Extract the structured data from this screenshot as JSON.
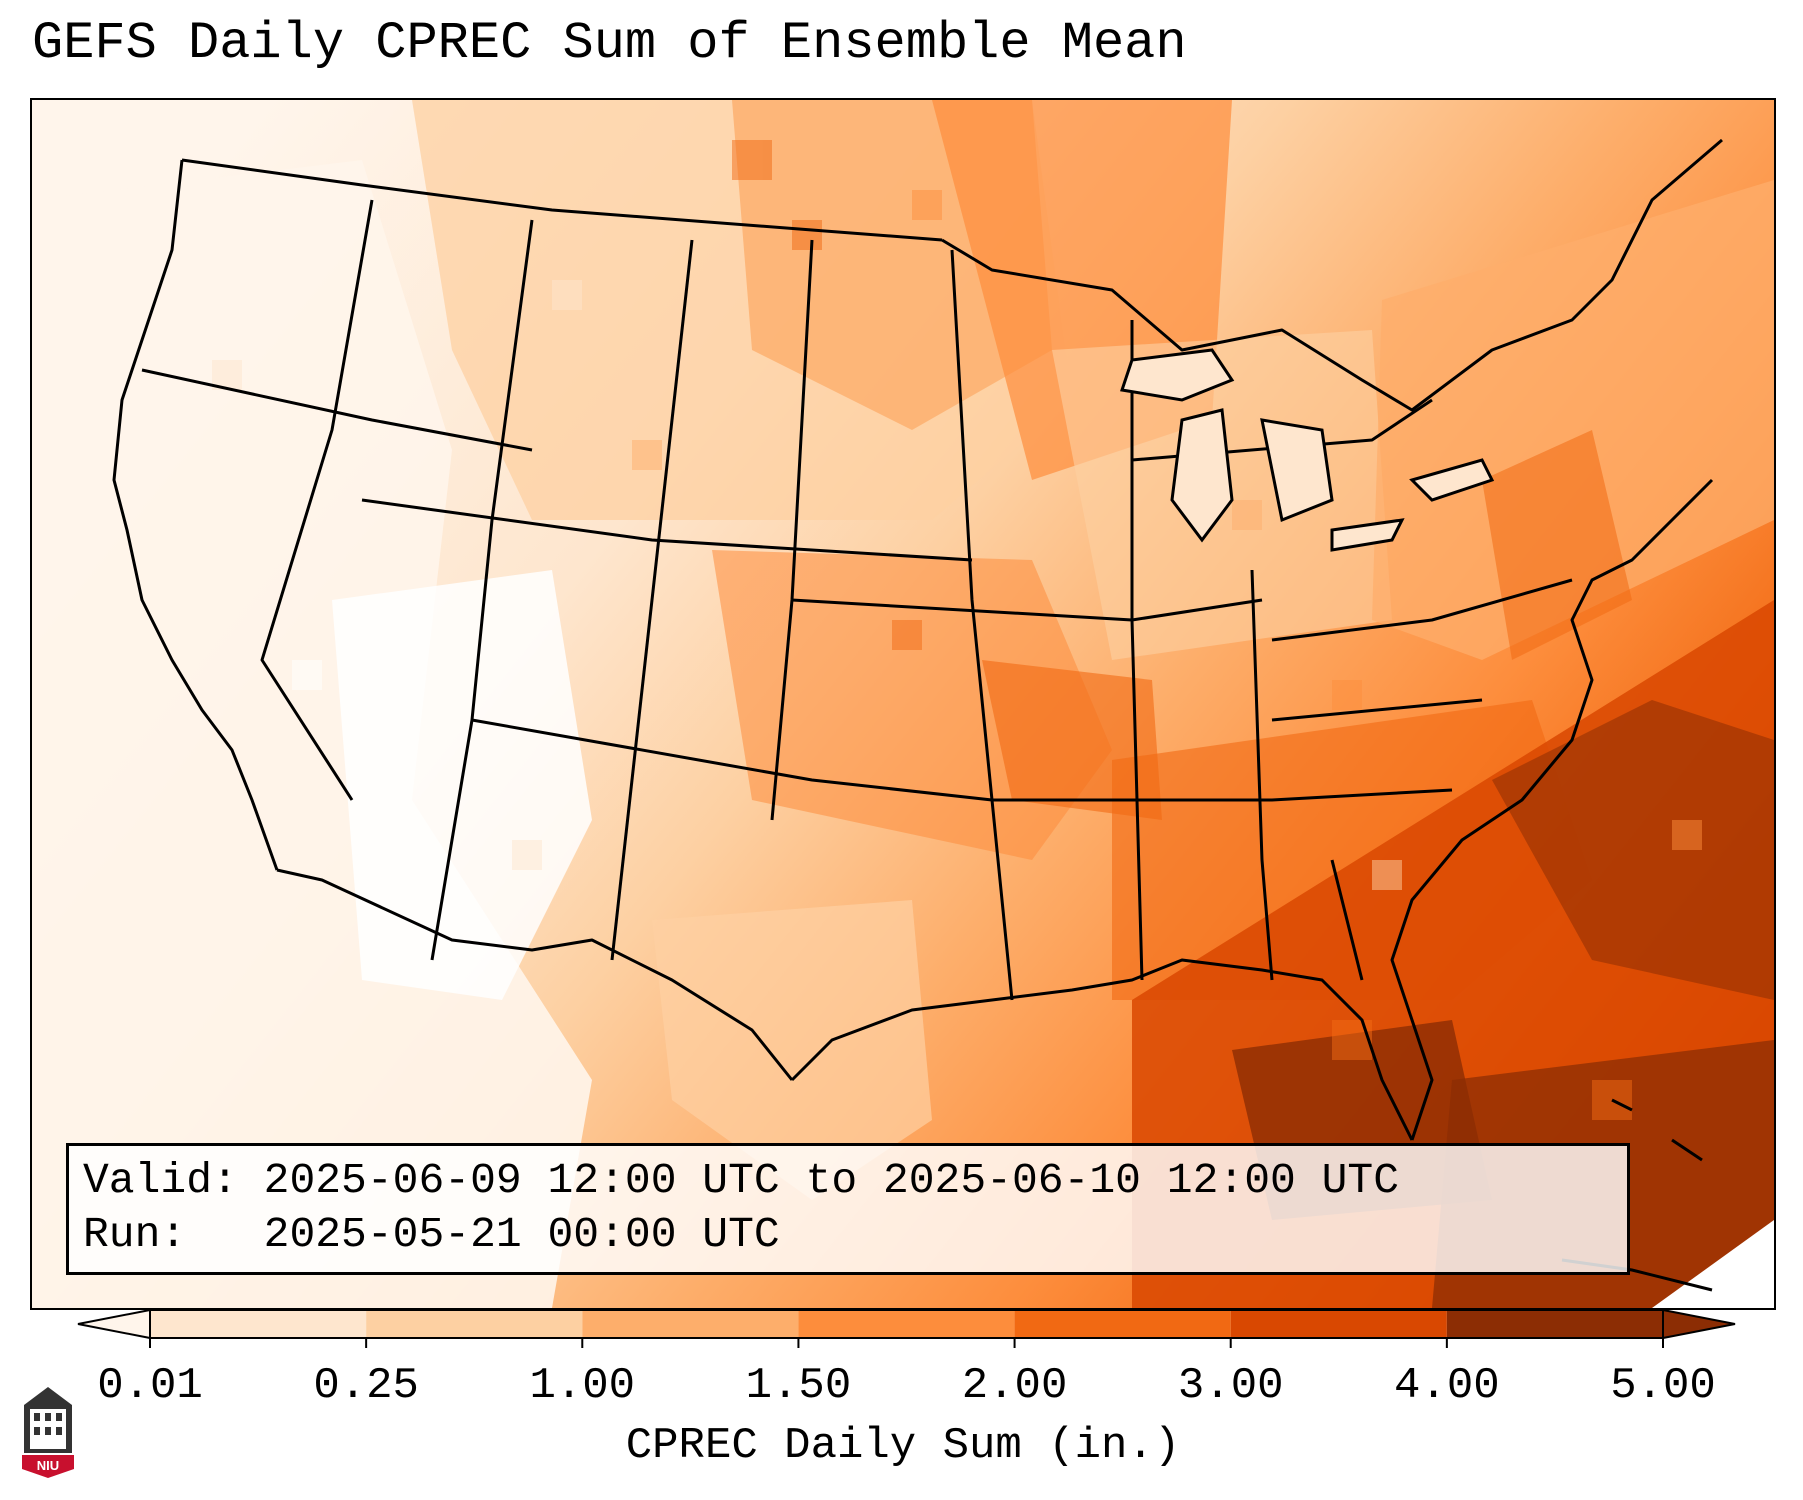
{
  "title": "GEFS Daily CPREC Sum of Ensemble Mean",
  "info": {
    "valid_label": "Valid:",
    "valid_value": "2025-06-09 12:00 UTC to 2025-06-10 12:00 UTC",
    "run_label": "Run:",
    "run_value": "2025-05-21 00:00 UTC"
  },
  "colorbar": {
    "label": "CPREC Daily Sum (in.)",
    "ticks": [
      "0.01",
      "0.25",
      "1.00",
      "1.50",
      "2.00",
      "3.00",
      "4.00",
      "5.00"
    ],
    "colors": [
      "#fff5eb",
      "#fee6ce",
      "#fdd0a2",
      "#fdae6b",
      "#fd8d3c",
      "#f16913",
      "#d94801",
      "#8c2d04"
    ],
    "extend": "both"
  },
  "logo": {
    "text": "NIU",
    "icon": "niu-logo-icon"
  }
}
